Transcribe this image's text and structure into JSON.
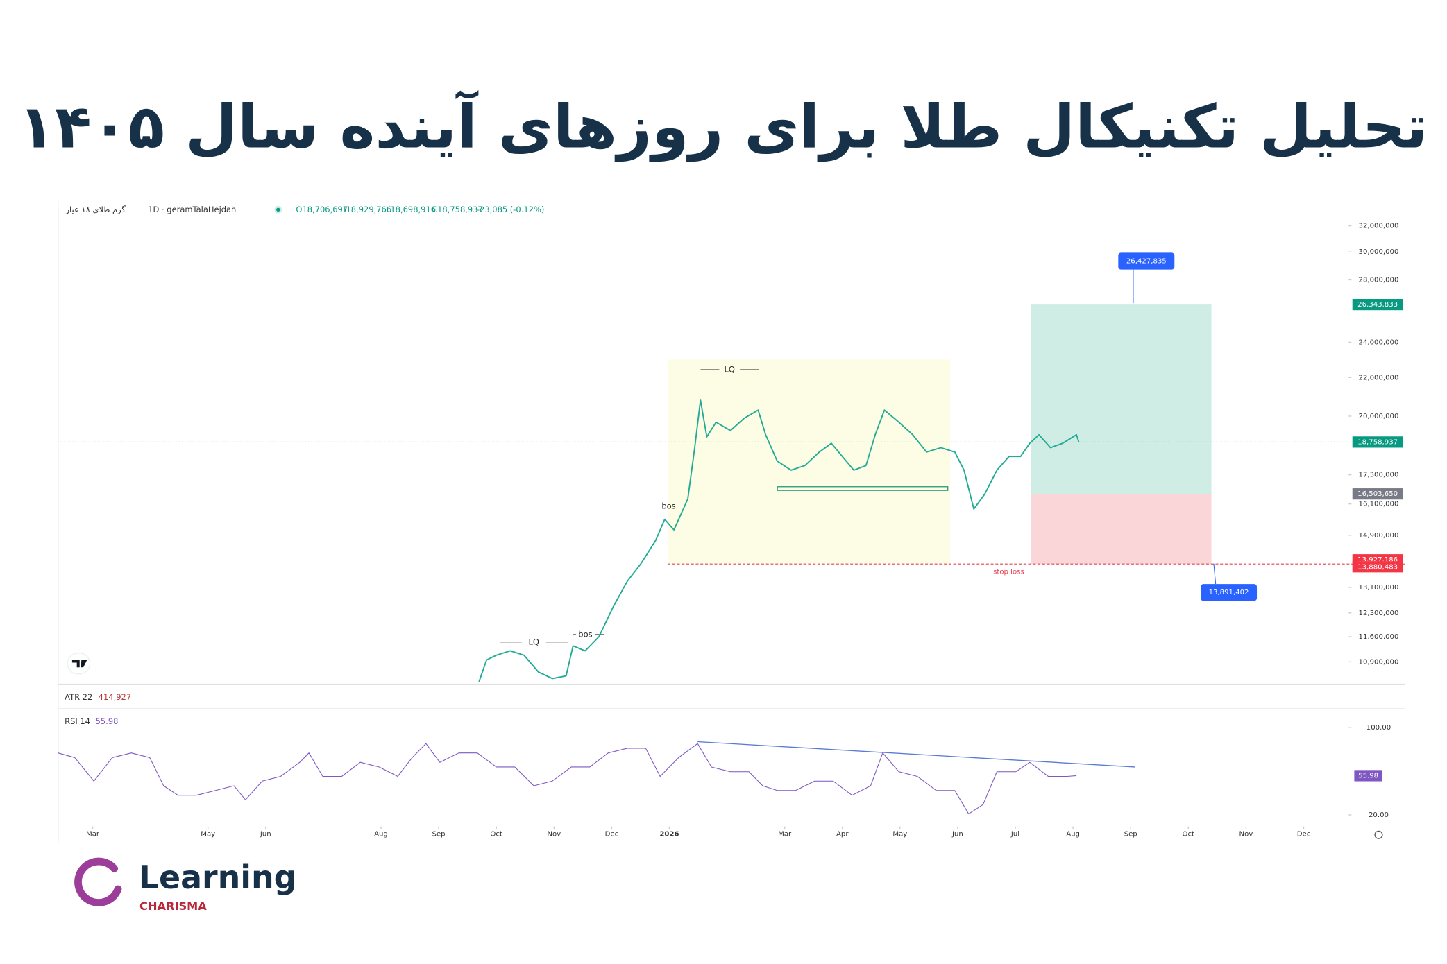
{
  "header": {
    "title": "تحلیل تکنیکال طلا برای روزهای آینده سال ۱۴۰۵"
  },
  "chart_data": [
    {
      "type": "line",
      "symbol_fa": "گرم طلای ۱۸ عیار",
      "symbol": "1D · geramTalaHejdah",
      "ohlc_text": [
        "O18,706,697",
        "H18,929,766",
        "L18,698,916",
        "C18,758,937",
        "-23,085 (-0.12%)"
      ],
      "atr_name": "ATR 22",
      "atr_value": "414,927",
      "log_scale": true,
      "xlim": [
        1.4,
        23.78
      ],
      "ylim": [
        10340000,
        34000000
      ],
      "yticks": [
        {
          "value": 10900000,
          "label": "10,900,000"
        },
        {
          "value": 11600000,
          "label": "11,600,000"
        },
        {
          "value": 12300000,
          "label": "12,300,000"
        },
        {
          "value": 13100000,
          "label": "13,100,000"
        },
        {
          "value": 14900000,
          "label": "14,900,000"
        },
        {
          "value": 16100000,
          "label": "16,100,000"
        },
        {
          "value": 17300000,
          "label": "17,300,000"
        },
        {
          "value": 20000000,
          "label": "20,000,000"
        },
        {
          "value": 22000000,
          "label": "22,000,000"
        },
        {
          "value": 24000000,
          "label": "24,000,000"
        },
        {
          "value": 28000000,
          "label": "28,000,000"
        },
        {
          "value": 30000000,
          "label": "30,000,000"
        },
        {
          "value": 32000000,
          "label": "32,000,000"
        }
      ],
      "x": [
        8.7,
        8.83,
        9.0,
        9.24,
        9.48,
        9.73,
        9.97,
        10.21,
        10.33,
        10.54,
        10.78,
        11.03,
        11.27,
        11.51,
        11.76,
        11.92,
        12.08,
        12.32,
        12.44,
        12.54,
        12.65,
        12.81,
        13.06,
        13.3,
        13.54,
        13.67,
        13.87,
        14.11,
        14.35,
        14.6,
        14.81,
        15.0,
        15.2,
        15.41,
        15.57,
        15.73,
        15.98,
        16.22,
        16.46,
        16.71,
        16.95,
        17.11,
        17.28,
        17.47,
        17.68,
        17.89,
        18.09,
        18.25,
        18.41,
        18.61,
        18.82,
        19.06,
        19.1
      ],
      "series": [
        {
          "color": "#22ab94",
          "values": [
            10380000,
            10950000,
            11080000,
            11200000,
            11080000,
            10630000,
            10460000,
            10530000,
            11340000,
            11200000,
            11600000,
            12500000,
            13300000,
            13900000,
            14700000,
            15500000,
            15100000,
            16300000,
            18500000,
            20800000,
            19000000,
            19700000,
            19300000,
            19900000,
            20300000,
            19100000,
            17900000,
            17500000,
            17700000,
            18300000,
            18700000,
            18100000,
            17500000,
            17700000,
            19100000,
            20300000,
            19700000,
            19100000,
            18300000,
            18500000,
            18300000,
            17500000,
            15900000,
            16500000,
            17500000,
            18100000,
            18100000,
            18700000,
            19100000,
            18500000,
            18700000,
            19100000,
            18758937
          ]
        }
      ],
      "price_labels": [
        {
          "value": 26343833,
          "label": "26,343,833",
          "color": "#089981"
        },
        {
          "value": 18758937,
          "label": "18,758,937",
          "color": "#089981"
        },
        {
          "value": 16503650,
          "label": "16,503,650",
          "color": "#787b86"
        },
        {
          "value": 13927186,
          "label": "13,927,186",
          "color": "#f23645"
        },
        {
          "value": 13880483,
          "label": "13,880,483",
          "color": "#f23645"
        }
      ],
      "callouts": [
        {
          "value": 26427835,
          "label": "26,427,835"
        },
        {
          "value": 13891402,
          "label": "13,891,402"
        }
      ],
      "position_x": [
        18.27,
        21.4
      ],
      "range_box": {
        "x": [
          11.97,
          16.87
        ],
        "y": [
          23000000,
          13900000
        ]
      },
      "annotations": [
        "LQ",
        "bos",
        "LQ",
        "bos",
        "stop loss"
      ]
    },
    {
      "type": "line",
      "name": "RSI 14",
      "value_label": "55.98",
      "xlim": [
        1.4,
        23.78
      ],
      "ylim": [
        12,
        115
      ],
      "yticks": [
        {
          "value": 100,
          "label": "100.00"
        },
        {
          "value": 20,
          "label": "20.00"
        }
      ],
      "xticks": [
        {
          "value": 2,
          "label": "Mar"
        },
        {
          "value": 4,
          "label": "May"
        },
        {
          "value": 5,
          "label": "Jun"
        },
        {
          "value": 7,
          "label": "Aug"
        },
        {
          "value": 8,
          "label": "Sep"
        },
        {
          "value": 9,
          "label": "Oct"
        },
        {
          "value": 10,
          "label": "Nov"
        },
        {
          "value": 11,
          "label": "Dec"
        },
        {
          "value": 12,
          "label": "2026"
        },
        {
          "value": 14,
          "label": "Mar"
        },
        {
          "value": 15,
          "label": "Apr"
        },
        {
          "value": 16,
          "label": "May"
        },
        {
          "value": 17,
          "label": "Jun"
        },
        {
          "value": 18,
          "label": "Jul"
        },
        {
          "value": 19,
          "label": "Aug"
        },
        {
          "value": 20,
          "label": "Sep"
        },
        {
          "value": 21,
          "label": "Oct"
        },
        {
          "value": 22,
          "label": "Nov"
        },
        {
          "value": 23,
          "label": "Dec"
        }
      ],
      "x": [
        1.4,
        1.69,
        2.02,
        2.34,
        2.67,
        2.99,
        3.23,
        3.48,
        3.8,
        4.13,
        4.45,
        4.65,
        4.94,
        5.26,
        5.59,
        5.75,
        5.99,
        6.32,
        6.64,
        6.97,
        7.29,
        7.54,
        7.78,
        8.02,
        8.35,
        8.67,
        9.0,
        9.32,
        9.65,
        9.97,
        10.3,
        10.62,
        10.94,
        11.27,
        11.59,
        11.84,
        12.16,
        12.49,
        12.73,
        13.06,
        13.38,
        13.62,
        13.87,
        14.19,
        14.52,
        14.84,
        15.17,
        15.49,
        15.7,
        15.98,
        16.3,
        16.63,
        16.95,
        17.19,
        17.44,
        17.68,
        18.01,
        18.25,
        18.57,
        18.9,
        19.06
      ],
      "series": [
        {
          "color": "#7e57c2",
          "values": [
            76.8,
            72.5,
            51,
            72.5,
            76.8,
            72.5,
            46.7,
            38,
            38,
            42.4,
            46.7,
            33.8,
            51,
            55.3,
            68.2,
            76.8,
            55.3,
            55.3,
            68.2,
            63.9,
            55.3,
            72.5,
            85.4,
            68.2,
            76.8,
            76.8,
            63.9,
            63.9,
            46.7,
            51,
            63.9,
            63.9,
            76.8,
            81.1,
            81.1,
            55.3,
            72.5,
            85.4,
            63.9,
            59.6,
            59.6,
            46.7,
            42.4,
            42.4,
            51,
            51,
            38,
            46.7,
            76.8,
            59.6,
            55.3,
            42.4,
            42.4,
            20.9,
            29.5,
            59.6,
            59.6,
            68.2,
            55.3,
            55.3,
            55.98
          ]
        }
      ],
      "trendline": {
        "color": "#5b7bd5",
        "x": [
          12.49,
          20.07
        ],
        "values": [
          87.1,
          63.9
        ]
      }
    }
  ],
  "logo": {
    "name": "Learning",
    "sub": "CHARISMA"
  }
}
